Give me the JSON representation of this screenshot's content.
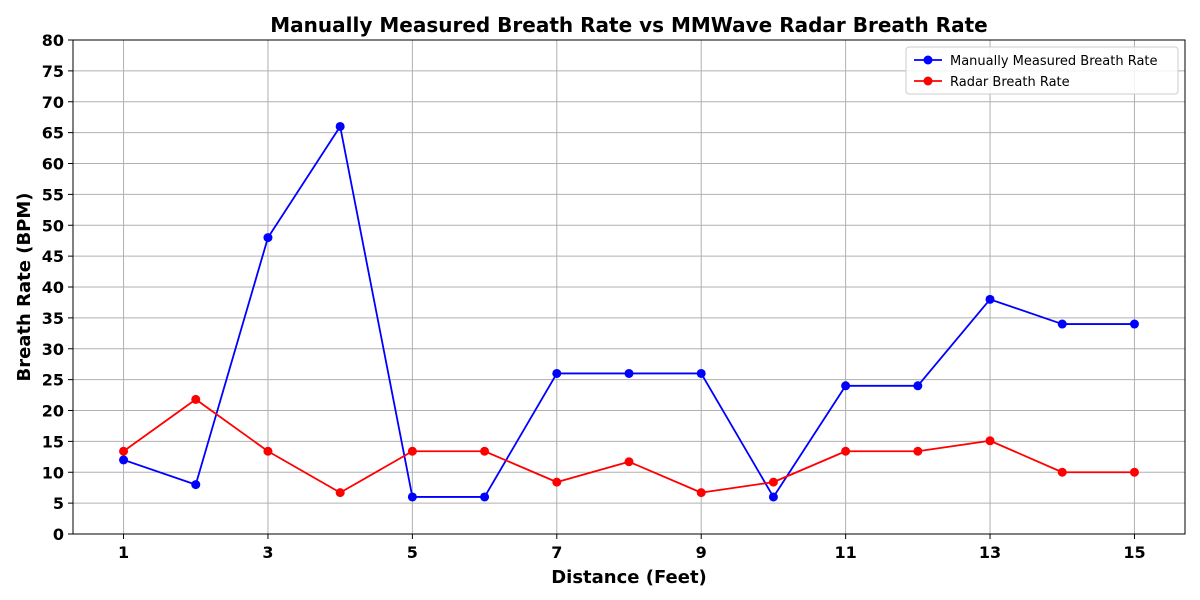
{
  "chart_data": {
    "type": "line",
    "title": "Manually Measured Breath Rate vs MMWave Radar Breath Rate",
    "xlabel": "Distance (Feet)",
    "ylabel": "Breath Rate (BPM)",
    "x": [
      1,
      2,
      3,
      4,
      5,
      6,
      7,
      8,
      9,
      10,
      11,
      12,
      13,
      14,
      15
    ],
    "xticks": [
      1,
      3,
      5,
      7,
      9,
      11,
      13,
      15
    ],
    "yticks": [
      0,
      5,
      10,
      15,
      20,
      25,
      30,
      35,
      40,
      45,
      50,
      55,
      60,
      65,
      70,
      75,
      80
    ],
    "xlim": [
      0.3,
      15.7
    ],
    "ylim": [
      0,
      80
    ],
    "grid": true,
    "legend_position": "top-right",
    "series": [
      {
        "name": "Manually Measured Breath Rate",
        "color": "#0000ff",
        "values": [
          12,
          8,
          48,
          66,
          6,
          6,
          26,
          26,
          26,
          6,
          24,
          24,
          38,
          34,
          34
        ]
      },
      {
        "name": "Radar Breath Rate",
        "color": "#ff0000",
        "values": [
          13.4,
          21.8,
          13.4,
          6.7,
          13.4,
          13.4,
          8.4,
          11.7,
          6.7,
          8.4,
          13.4,
          13.4,
          15.1,
          10,
          10
        ]
      }
    ]
  }
}
